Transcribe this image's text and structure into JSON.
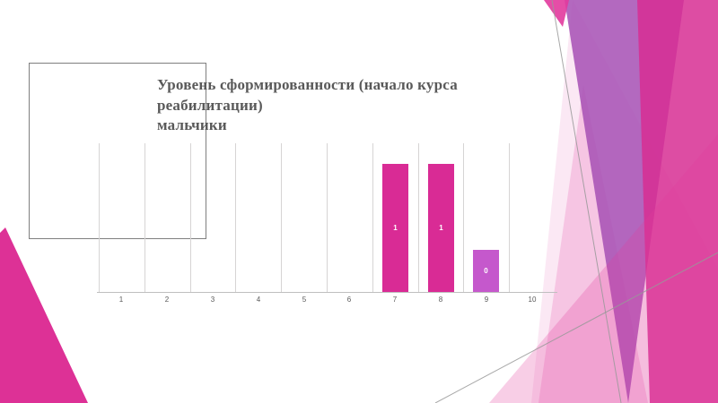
{
  "slide": {
    "background_color": "#FFFFFF",
    "empty_placeholder": "rectangle-outline-no-text"
  },
  "chart_data": {
    "type": "bar",
    "title": "Уровень сформированности (начало курса реабилитации) мальчики",
    "title_lines": [
      "Уровень сформированности (начало курса",
      "реабилитации)",
      "мальчики"
    ],
    "categories": [
      "1",
      "2",
      "3",
      "4",
      "5",
      "6",
      "7",
      "8",
      "9",
      "10"
    ],
    "values": [
      0,
      0,
      0,
      0,
      0,
      0,
      1,
      1,
      0.33,
      0
    ],
    "bars": [
      {
        "category": "7",
        "value": 1,
        "label": "1",
        "color": "#D92B95"
      },
      {
        "category": "8",
        "value": 1,
        "label": "1",
        "color": "#D92B95"
      },
      {
        "category": "9",
        "value": 0.33,
        "label": "0",
        "color": "#C558CC"
      }
    ],
    "xlabel": "",
    "ylabel": "",
    "ylim": [
      0,
      1.16
    ],
    "grid": "vertical-category-boundary-lines",
    "legend": "none",
    "colors": {
      "title_text": "#595959",
      "tick_text": "#595959",
      "gridline": "#D6D4D4",
      "axis_line": "#BFBFBF",
      "value_label_text": "#FFFFFF",
      "placeholder_border": "#7F7F7F"
    }
  },
  "decor": {
    "pale_pink": "#F9D8EC",
    "light_pink": "#F2A2D2",
    "purple": "#A64FB4",
    "magenta": "#D72E93",
    "magenta_bright": "#E23A9D",
    "wedge_magenta": "#DD3196",
    "line_gray": "#999999"
  }
}
